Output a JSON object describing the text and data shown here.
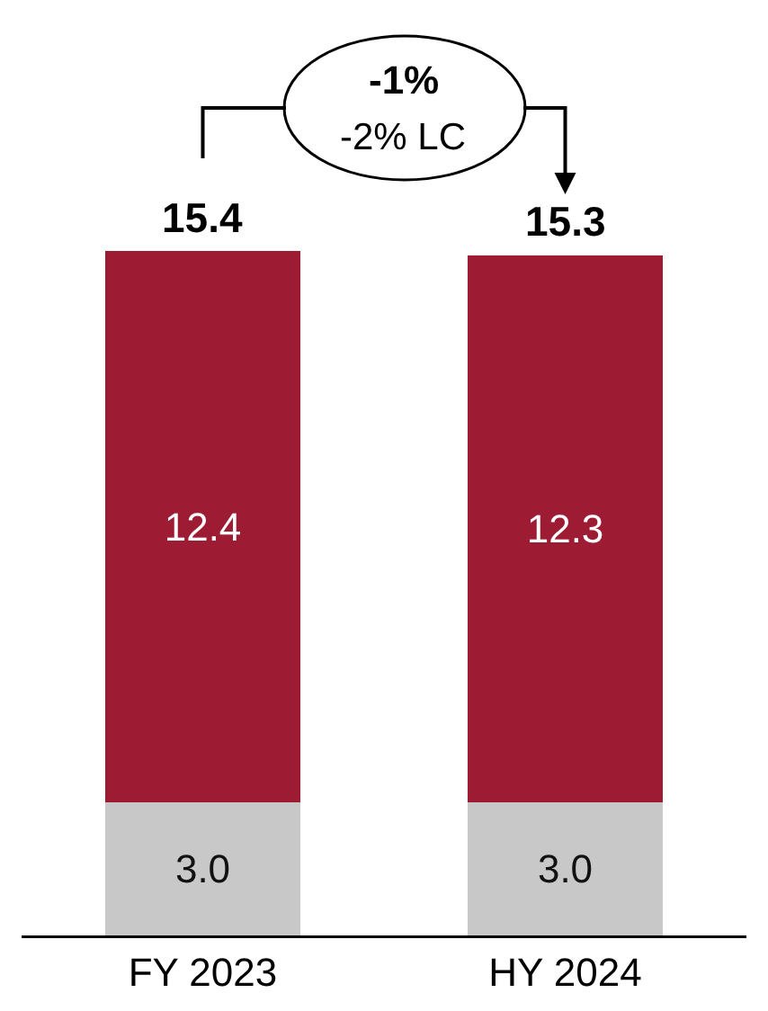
{
  "chart_data": {
    "type": "bar",
    "stacked": true,
    "categories": [
      "FY 2023",
      "HY 2024"
    ],
    "series": [
      {
        "color": "#c8c8c8",
        "values": [
          3.0,
          3.0
        ],
        "value_labels": [
          "3.0",
          "3.0"
        ]
      },
      {
        "color": "#9e1b34",
        "values": [
          12.4,
          12.3
        ],
        "value_labels": [
          "12.4",
          "12.3"
        ]
      }
    ],
    "totals": [
      "15.4",
      "15.3"
    ],
    "annotations": [
      "-1%",
      "-2% LC"
    ]
  }
}
